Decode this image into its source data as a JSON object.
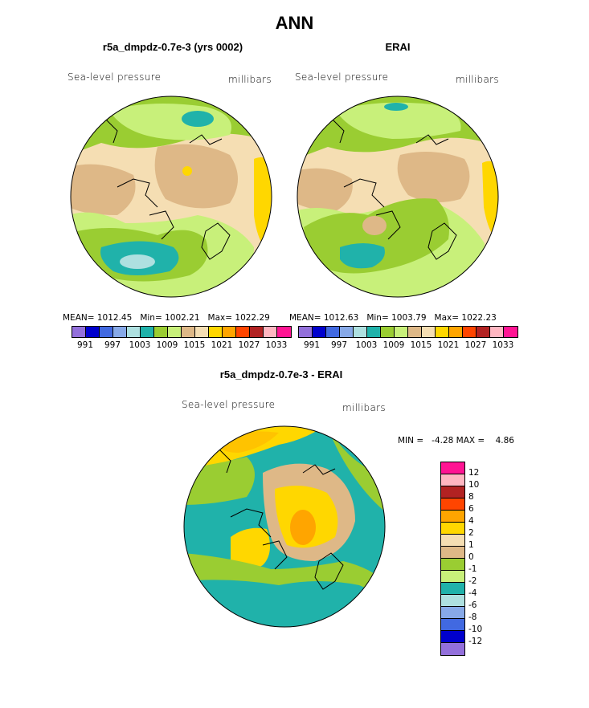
{
  "title": "ANN",
  "panel1": {
    "subtitle": "r5a_dmpdz-0.7e-3 (yrs 0002)",
    "left_label": "Sea-level pressure",
    "right_label": "millibars",
    "mean_label": "MEAN=",
    "mean": "1012.45",
    "min_label": "Min=",
    "min": "1002.21",
    "max_label": "Max=",
    "max": "1022.29"
  },
  "panel2": {
    "subtitle": "ERAI",
    "left_label": "Sea-level pressure",
    "right_label": "millibars",
    "mean_label": "MEAN=",
    "mean": "1012.63",
    "min_label": "Min=",
    "min": "1003.79",
    "max_label": "Max=",
    "max": "1022.23"
  },
  "panel3": {
    "subtitle": "r5a_dmpdz-0.7e-3 - ERAI",
    "left_label": "Sea-level pressure",
    "right_label": "millibars",
    "minmax": "MIN =   -4.28 MAX =    4.86"
  },
  "abs_colorbar": {
    "colors": [
      "#9370db",
      "#0000cd",
      "#4169e1",
      "#87a9e8",
      "#aee0e0",
      "#20b2aa",
      "#9acd32",
      "#c8f07a",
      "#deb887",
      "#f5deb3",
      "#ffd700",
      "#ffa500",
      "#ff4500",
      "#b22222",
      "#ffb6c1",
      "#ff1493"
    ],
    "labels": [
      "991",
      "997",
      "1003",
      "1009",
      "1015",
      "1021",
      "1027",
      "1033"
    ]
  },
  "diff_colorbar": {
    "colors_top_to_bottom": [
      "#ff1493",
      "#ffb6c1",
      "#b22222",
      "#ff4500",
      "#ffa500",
      "#ffd700",
      "#f5deb3",
      "#deb887",
      "#9acd32",
      "#c8f07a",
      "#20b2aa",
      "#aee0e0",
      "#87a9e8",
      "#4169e1",
      "#0000cd",
      "#9370db"
    ],
    "labels": [
      "12",
      "10",
      "8",
      "6",
      "4",
      "2",
      "1",
      "0",
      "-1",
      "-2",
      "-4",
      "-6",
      "-8",
      "-10",
      "-12"
    ]
  },
  "map_colors": {
    "cream": "#f5deb3",
    "tan": "#deb887",
    "lightgreen": "#c8f07a",
    "green": "#9acd32",
    "teal": "#20b2aa",
    "lightblue": "#aee0e0",
    "yellow": "#ffd700",
    "orange": "#ffa500"
  }
}
